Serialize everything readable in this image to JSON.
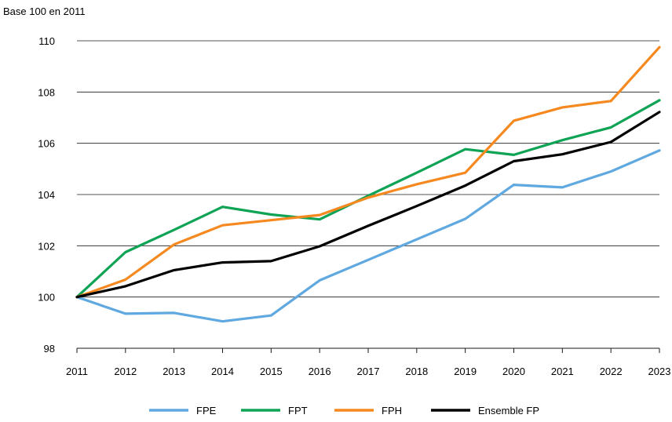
{
  "chart_data": {
    "type": "line",
    "ylabel": "Base 100 en 2011",
    "title": "",
    "xlabel": "",
    "x": [
      "2011",
      "2012",
      "2013",
      "2014",
      "2015",
      "2016",
      "2017",
      "2018",
      "2019",
      "2020",
      "2021",
      "2022",
      "2023"
    ],
    "ylim": [
      98,
      110
    ],
    "yticks": [
      98,
      100,
      102,
      104,
      106,
      108,
      110
    ],
    "grid": true,
    "legend_position": "bottom",
    "series": [
      {
        "name": "FPE",
        "color": "#5fa8e0",
        "values": [
          100,
          99.35,
          99.38,
          99.05,
          99.28,
          100.65,
          101.45,
          102.25,
          103.05,
          104.38,
          104.28,
          104.9,
          105.72
        ]
      },
      {
        "name": "FPT",
        "color": "#0fa356",
        "values": [
          100,
          101.75,
          102.62,
          103.52,
          103.22,
          103.03,
          103.95,
          104.85,
          105.77,
          105.55,
          106.12,
          106.62,
          107.68
        ]
      },
      {
        "name": "FPH",
        "color": "#f5891f",
        "values": [
          100,
          100.68,
          102.05,
          102.8,
          103.0,
          103.2,
          103.88,
          104.4,
          104.85,
          106.88,
          107.4,
          107.65,
          109.75
        ]
      },
      {
        "name": "Ensemble FP",
        "color": "#000000",
        "values": [
          100,
          100.42,
          101.05,
          101.35,
          101.4,
          101.98,
          102.78,
          103.55,
          104.35,
          105.3,
          105.57,
          106.05,
          107.22
        ]
      }
    ]
  }
}
